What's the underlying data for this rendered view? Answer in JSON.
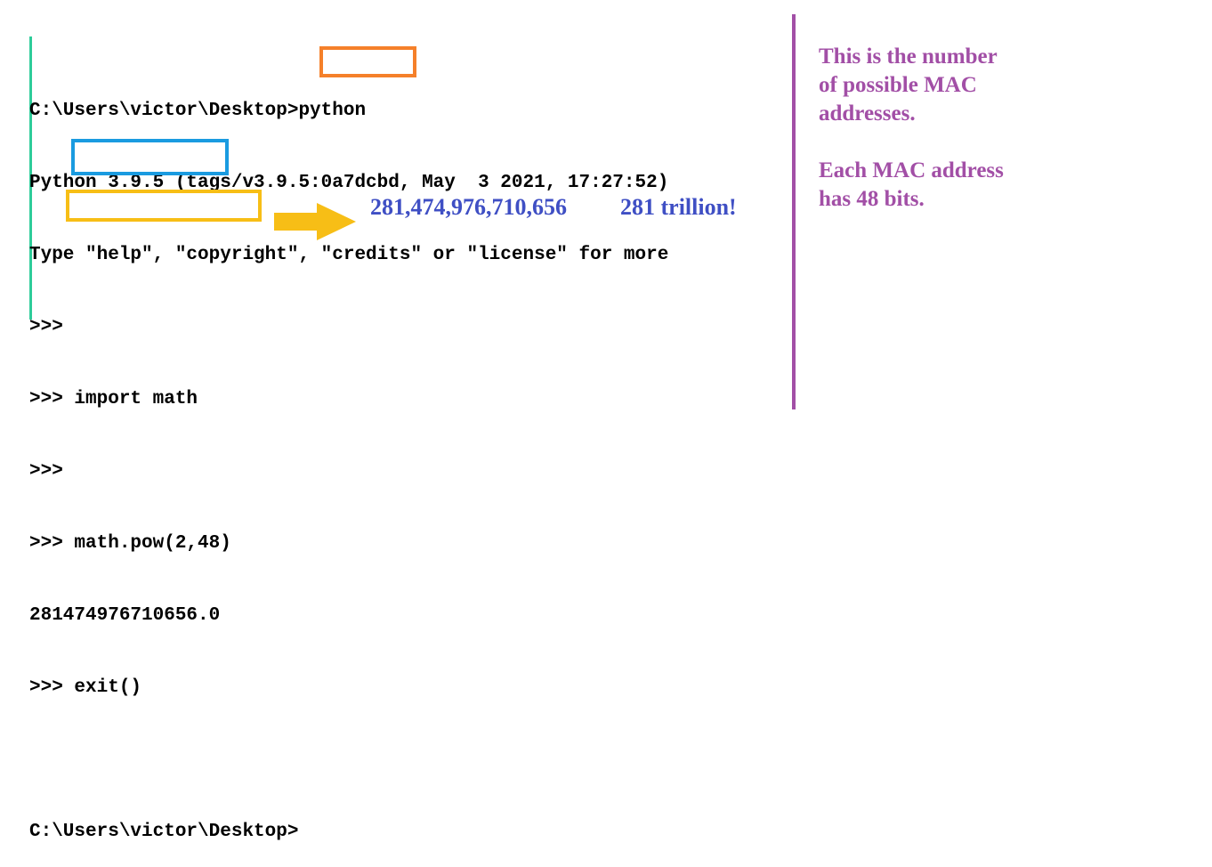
{
  "terminal": {
    "lines": [
      "C:\\Users\\victor\\Desktop>python",
      "Python 3.9.5 (tags/v3.9.5:0a7dcbd, May  3 2021, 17:27:52)",
      "Type \"help\", \"copyright\", \"credits\" or \"license\" for more",
      ">>>",
      ">>> import math",
      ">>>",
      ">>> math.pow(2,48)",
      "281474976710656.0",
      ">>> exit()",
      "",
      "C:\\Users\\victor\\Desktop>"
    ]
  },
  "annotations": {
    "number": "281,474,976,710,656",
    "trillion": "281 trillion!",
    "note1_line1": "This is the number",
    "note1_line2": "of possible MAC",
    "note1_line3": "addresses.",
    "note2_line1": "Each MAC address",
    "note2_line2": "has 48 bits."
  },
  "colors": {
    "highlight_python": "#f5802a",
    "highlight_import": "#1a9be0",
    "highlight_pow": "#f7be16",
    "arrow": "#f7be16",
    "blue_text": "#3f4fc4",
    "purple_text": "#a24fa6",
    "left_bar": "#2ecc9a"
  }
}
